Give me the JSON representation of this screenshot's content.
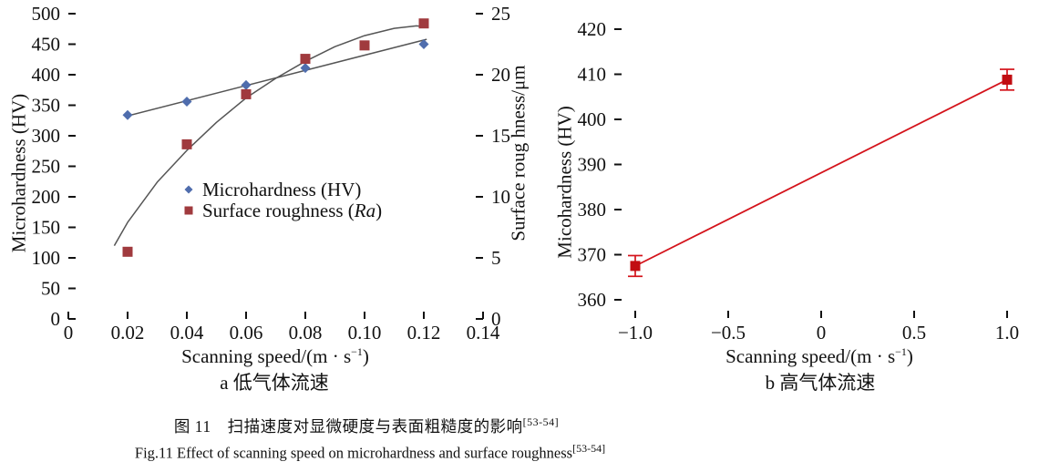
{
  "figure": {
    "caption_zh": "图 11　扫描速度对显微硬度与表面粗糙度的影响",
    "caption_zh_sup": "[53-54]",
    "caption_en": "Fig.11 Effect of scanning speed on microhardness and surface roughness",
    "caption_en_sup": "[53-54]"
  },
  "colors": {
    "axis": "#111111",
    "trend": "#555555",
    "microhardness_marker": "#4f6dad",
    "roughness_marker": "#a03a3e",
    "chart_b_line": "#d4131b",
    "chart_b_marker": "#c10d12"
  },
  "chart_data": [
    {
      "id": "a",
      "type": "scatter",
      "subcaption": "a 低气体流速",
      "xlabel": {
        "pre": "Scanning speed/(m · s",
        "sup": "−1",
        "post": ")"
      },
      "ylabel_left": "Microhardness (HV)",
      "ylabel_right": "Surface roug hness/μm",
      "xlim": [
        0,
        0.14
      ],
      "ylim_left": [
        0,
        500
      ],
      "ylim_right": [
        0,
        25
      ],
      "grid": false,
      "xticks": [
        {
          "v": 0,
          "l": "0"
        },
        {
          "v": 0.02,
          "l": "0.02"
        },
        {
          "v": 0.04,
          "l": "0.04"
        },
        {
          "v": 0.06,
          "l": "0.06"
        },
        {
          "v": 0.08,
          "l": "0.08"
        },
        {
          "v": 0.1,
          "l": "0.10"
        },
        {
          "v": 0.12,
          "l": "0.12"
        },
        {
          "v": 0.14,
          "l": "0.14"
        }
      ],
      "yticks_left": [
        {
          "v": 0,
          "l": "0"
        },
        {
          "v": 50,
          "l": "50"
        },
        {
          "v": 100,
          "l": "100"
        },
        {
          "v": 150,
          "l": "150"
        },
        {
          "v": 200,
          "l": "200"
        },
        {
          "v": 250,
          "l": "250"
        },
        {
          "v": 300,
          "l": "300"
        },
        {
          "v": 350,
          "l": "350"
        },
        {
          "v": 400,
          "l": "400"
        },
        {
          "v": 450,
          "l": "450"
        },
        {
          "v": 500,
          "l": "500"
        }
      ],
      "yticks_right": [
        {
          "v": 0,
          "l": "0"
        },
        {
          "v": 5,
          "l": "5"
        },
        {
          "v": 10,
          "l": "10"
        },
        {
          "v": 15,
          "l": "15"
        },
        {
          "v": 20,
          "l": "20"
        },
        {
          "v": 25,
          "l": "25"
        }
      ],
      "series": [
        {
          "name": "Microhardness (HV)",
          "axis": "left",
          "marker": "diamond",
          "color": "#4f6dad",
          "x": [
            0.02,
            0.04,
            0.06,
            0.08,
            0.12
          ],
          "y": [
            334,
            356,
            383,
            411,
            450
          ],
          "trend": {
            "shape": "line",
            "x": [
              0.0195,
              0.121
            ],
            "y": [
              332,
              458
            ]
          }
        },
        {
          "name": "Surface roughness (Ra)",
          "axis": "right",
          "marker": "square",
          "color": "#a03a3e",
          "x": [
            0.02,
            0.04,
            0.06,
            0.08,
            0.1,
            0.12
          ],
          "y": [
            5.5,
            14.3,
            18.4,
            21.3,
            22.4,
            24.2
          ],
          "trend": {
            "shape": "curve",
            "x": [
              0.0155,
              0.02,
              0.03,
              0.04,
              0.05,
              0.06,
              0.07,
              0.08,
              0.09,
              0.1,
              0.11,
              0.1175,
              0.1215
            ],
            "y": [
              6.0,
              7.9,
              11.2,
              13.8,
              16.1,
              18.1,
              19.7,
              21.1,
              22.3,
              23.2,
              23.8,
              24.0,
              23.9
            ]
          }
        }
      ],
      "legend_items": [
        {
          "marker": "diamond",
          "parts": [
            {
              "t": "Microhardness (HV)",
              "i": false
            }
          ]
        },
        {
          "marker": "square",
          "parts": [
            {
              "t": "Surface roughness (",
              "i": false
            },
            {
              "t": "Ra",
              "i": true
            },
            {
              "t": ")",
              "i": false
            }
          ]
        }
      ]
    },
    {
      "id": "b",
      "type": "scatter",
      "subcaption": "b 高气体流速",
      "xlabel": {
        "pre": "Scanning speed/(m · s",
        "sup": "−1",
        "post": ")"
      },
      "ylabel_left": "Micohardness (HV)",
      "xlim": [
        -1.12,
        1.12
      ],
      "ylim_left": [
        356,
        424
      ],
      "grid": false,
      "xticks": [
        {
          "v": -1.0,
          "l": "−1.0"
        },
        {
          "v": -0.5,
          "l": "−0.5"
        },
        {
          "v": 0,
          "l": "0"
        },
        {
          "v": 0.5,
          "l": "0.5"
        },
        {
          "v": 1.0,
          "l": "1.0"
        }
      ],
      "yticks_left": [
        {
          "v": 360,
          "l": "360"
        },
        {
          "v": 370,
          "l": "370"
        },
        {
          "v": 380,
          "l": "380"
        },
        {
          "v": 390,
          "l": "390"
        },
        {
          "v": 400,
          "l": "400"
        },
        {
          "v": 410,
          "l": "410"
        },
        {
          "v": 420,
          "l": "420"
        }
      ],
      "series": [
        {
          "name": "Microhardness (HV)",
          "axis": "left",
          "marker": "square",
          "color": "#c10d12",
          "line_color": "#d4131b",
          "connect": true,
          "x": [
            -1.0,
            1.0
          ],
          "y": [
            367.5,
            408.8
          ],
          "yerr": [
            2.3,
            2.3
          ]
        }
      ]
    }
  ]
}
